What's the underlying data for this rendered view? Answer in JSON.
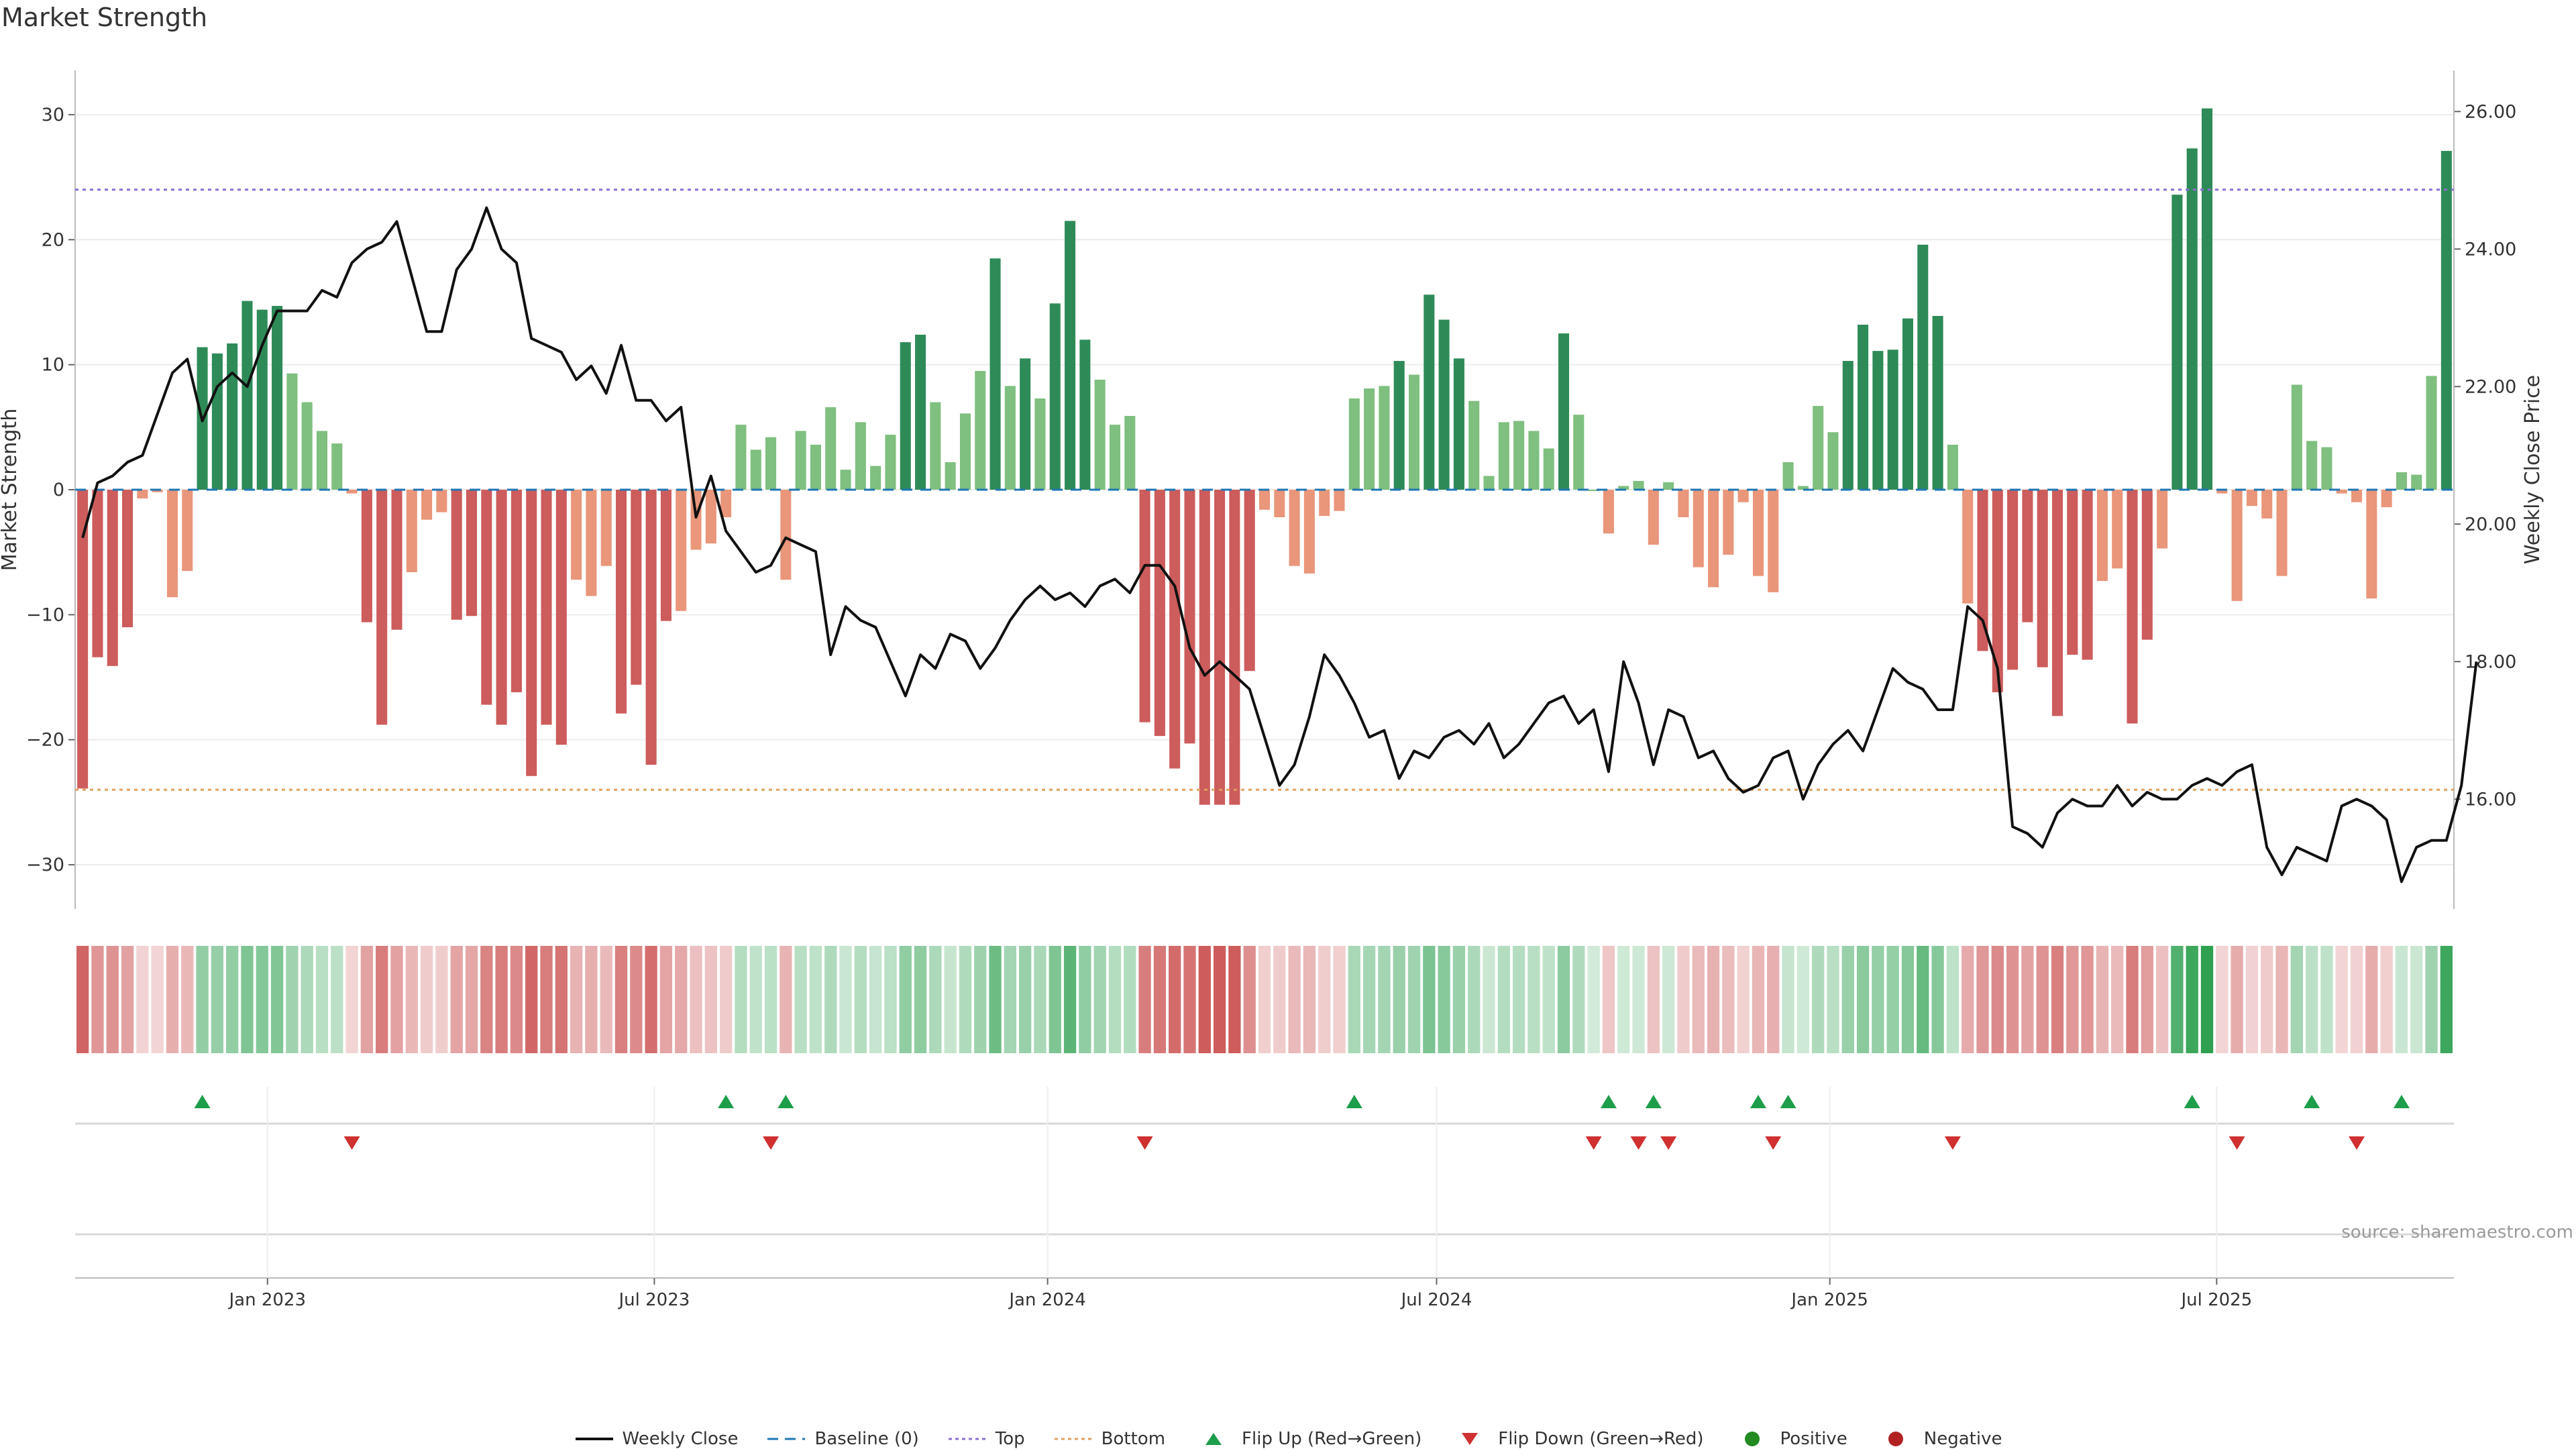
{
  "title": "Market Strength",
  "source": "source: sharemaestro.com",
  "colors": {
    "pos_dark": "#2e8b57",
    "pos_light": "#7fbf7f",
    "neg_dark": "#cd5c5c",
    "neg_light": "#e9967a",
    "price_line": "#111111",
    "baseline": "#1f77b4",
    "top_line": "#8a6fd0",
    "bottom_line": "#e0a060",
    "flip_up": "#1e9e4a",
    "flip_down": "#d03030",
    "positive": "#228b22",
    "negative": "#b22222"
  },
  "legend": [
    {
      "label": "Weekly Close",
      "marker": "line-solid",
      "color": "#111111"
    },
    {
      "label": "Baseline (0)",
      "marker": "line-dashed",
      "color": "#1f77b4"
    },
    {
      "label": "Top",
      "marker": "line-dotted",
      "color": "#8a6fd0"
    },
    {
      "label": "Bottom",
      "marker": "line-dotted",
      "color": "#e0a060"
    },
    {
      "label": "Flip Up (Red→Green)",
      "marker": "triangle-up",
      "color": "#1e9e4a"
    },
    {
      "label": "Flip Down (Green→Red)",
      "marker": "triangle-down",
      "color": "#d03030"
    },
    {
      "label": "Positive",
      "marker": "circle",
      "color": "#228b22"
    },
    {
      "label": "Negative",
      "marker": "circle",
      "color": "#b22222"
    }
  ],
  "chart_data": {
    "type": "bar",
    "start_date": "2022-10-03",
    "interval": "weekly",
    "ylabel_left": "Market Strength",
    "ylabel_right": "Weekly Close Price",
    "yrange_left": [
      -33,
      33
    ],
    "yrange_right": [
      14.5,
      26.5
    ],
    "yticks_left": [
      -30,
      -20,
      -10,
      0,
      10,
      20,
      30
    ],
    "yticks_right": [
      "16.00",
      "18.00",
      "20.00",
      "22.00",
      "24.00",
      "26.00"
    ],
    "xticks": [
      {
        "label": "Jan 2023",
        "date": "2023-01-01"
      },
      {
        "label": "Jul 2023",
        "date": "2023-07-01"
      },
      {
        "label": "Jan 2024",
        "date": "2024-01-01"
      },
      {
        "label": "Jul 2024",
        "date": "2024-07-01"
      },
      {
        "label": "Jan 2025",
        "date": "2025-01-01"
      },
      {
        "label": "Jul 2025",
        "date": "2025-07-01"
      }
    ],
    "top_level": 24,
    "bottom_level": -24,
    "strength": [
      -23.9,
      -13.4,
      -14.1,
      -11.0,
      -0.7,
      -0.2,
      -8.6,
      -6.5,
      11.4,
      10.9,
      11.7,
      15.1,
      14.4,
      14.7,
      9.3,
      7.0,
      4.7,
      3.7,
      -0.3,
      -10.6,
      -18.8,
      -11.2,
      -6.6,
      -2.4,
      -1.8,
      -10.4,
      -10.1,
      -17.2,
      -18.8,
      -16.2,
      -22.9,
      -18.8,
      -20.4,
      -7.2,
      -8.5,
      -6.1,
      -17.9,
      -15.6,
      -22.0,
      -10.5,
      -9.7,
      -4.8,
      -4.3,
      -2.2,
      5.2,
      3.2,
      4.2,
      -7.2,
      4.7,
      3.6,
      6.6,
      1.6,
      5.4,
      1.9,
      4.4,
      11.8,
      12.4,
      7.0,
      2.2,
      6.1,
      9.5,
      18.5,
      8.3,
      10.5,
      7.3,
      14.9,
      21.5,
      12.0,
      8.8,
      5.2,
      5.9,
      -18.6,
      -19.7,
      -22.3,
      -20.3,
      -25.2,
      -25.2,
      -25.2,
      -14.5,
      -1.6,
      -2.2,
      -6.1,
      -6.7,
      -2.1,
      -1.7,
      7.3,
      8.1,
      8.3,
      10.3,
      9.2,
      15.6,
      13.6,
      10.5,
      7.1,
      1.1,
      5.4,
      5.5,
      4.7,
      3.3,
      12.5,
      6.0,
      0.0,
      -3.5,
      0.3,
      0.7,
      -4.4,
      0.6,
      -2.2,
      -6.2,
      -7.8,
      -5.2,
      -1.0,
      -6.9,
      -8.2,
      2.2,
      0.3,
      6.7,
      4.6,
      10.3,
      13.2,
      11.1,
      11.2,
      13.7,
      19.6,
      13.9,
      3.6,
      -9.1,
      -12.9,
      -16.2,
      -14.4,
      -10.6,
      -14.2,
      -18.1,
      -13.2,
      -13.6,
      -7.3,
      -6.3,
      -18.7,
      -12.0,
      -4.7,
      23.6,
      27.3,
      30.5,
      -0.3,
      -8.9,
      -1.3,
      -2.3,
      -6.9,
      8.4,
      3.9,
      3.4,
      -0.3,
      -1.0,
      -8.7,
      -1.4,
      1.4,
      1.2,
      9.1,
      27.1
    ],
    "price": [
      19.8,
      20.6,
      20.7,
      20.9,
      21.0,
      21.6,
      22.2,
      22.4,
      21.5,
      22.0,
      22.2,
      22.0,
      22.6,
      23.1,
      23.1,
      23.1,
      23.4,
      23.3,
      23.8,
      24.0,
      24.1,
      24.4,
      23.6,
      22.8,
      22.8,
      23.7,
      24.0,
      24.6,
      24.0,
      23.8,
      22.7,
      22.6,
      22.5,
      22.1,
      22.3,
      21.9,
      22.6,
      21.8,
      21.8,
      21.5,
      21.7,
      20.1,
      20.7,
      19.9,
      19.6,
      19.3,
      19.4,
      19.8,
      19.7,
      19.6,
      18.1,
      18.8,
      18.6,
      18.5,
      18.0,
      17.5,
      18.1,
      17.9,
      18.4,
      18.3,
      17.9,
      18.2,
      18.6,
      18.9,
      19.1,
      18.9,
      19.0,
      18.8,
      19.1,
      19.2,
      19.0,
      19.4,
      19.4,
      19.1,
      18.2,
      17.8,
      18.0,
      17.8,
      17.6,
      16.9,
      16.2,
      16.5,
      17.2,
      18.1,
      17.8,
      17.4,
      16.9,
      17.0,
      16.3,
      16.7,
      16.6,
      16.9,
      17.0,
      16.8,
      17.1,
      16.6,
      16.8,
      17.1,
      17.4,
      17.5,
      17.1,
      17.3,
      16.4,
      18.0,
      17.4,
      16.5,
      17.3,
      17.2,
      16.6,
      16.7,
      16.3,
      16.1,
      16.2,
      16.6,
      16.7,
      16.0,
      16.5,
      16.8,
      17.0,
      16.7,
      17.3,
      17.9,
      17.7,
      17.6,
      17.3,
      17.3,
      18.8,
      18.6,
      17.9,
      15.6,
      15.5,
      15.3,
      15.8,
      16.0,
      15.9,
      15.9,
      16.2,
      15.9,
      16.1,
      16.0,
      16.0,
      16.2,
      16.3,
      16.2,
      16.4,
      16.5,
      15.3,
      14.9,
      15.3,
      15.2,
      15.1,
      15.9,
      16.0,
      15.9,
      15.7,
      14.8,
      15.3,
      15.4,
      15.4,
      16.2,
      18.0
    ],
    "flip_up": [
      8,
      43,
      47,
      85,
      102,
      105,
      112,
      114,
      141,
      149,
      155
    ],
    "flip_down": [
      18,
      46,
      71,
      101,
      104,
      106,
      113,
      125,
      144,
      152
    ]
  }
}
